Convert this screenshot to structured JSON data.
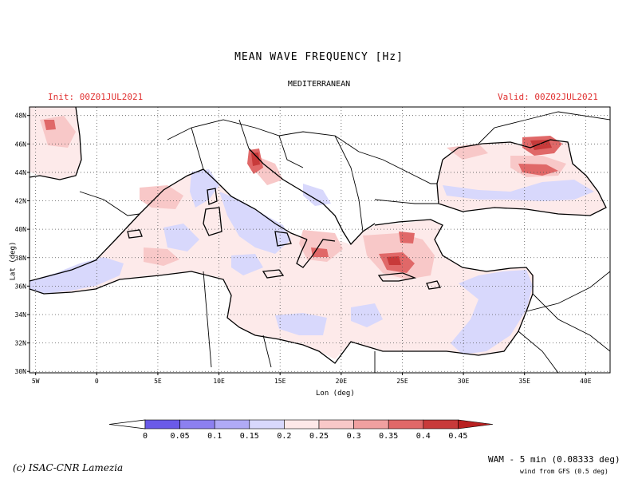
{
  "title": "MEAN WAVE FREQUENCY [Hz]",
  "region": "MEDITERRANEAN",
  "init": "Init: 00Z01JUL2021",
  "valid": "Valid: 00Z02JUL2021",
  "axes": {
    "xlabel": "Lon (deg)",
    "ylabel": "Lat (deg)",
    "lon_ticks": [
      {
        "lon": -5,
        "label": "5W"
      },
      {
        "lon": 0,
        "label": "0"
      },
      {
        "lon": 5,
        "label": "5E"
      },
      {
        "lon": 10,
        "label": "10E"
      },
      {
        "lon": 15,
        "label": "15E"
      },
      {
        "lon": 20,
        "label": "20E"
      },
      {
        "lon": 25,
        "label": "25E"
      },
      {
        "lon": 30,
        "label": "30E"
      },
      {
        "lon": 35,
        "label": "35E"
      },
      {
        "lon": 40,
        "label": "40E"
      }
    ],
    "lat_ticks": [
      {
        "lat": 30,
        "label": "30N"
      },
      {
        "lat": 32,
        "label": "32N"
      },
      {
        "lat": 34,
        "label": "34N"
      },
      {
        "lat": 36,
        "label": "36N"
      },
      {
        "lat": 38,
        "label": "38N"
      },
      {
        "lat": 40,
        "label": "40N"
      },
      {
        "lat": 42,
        "label": "42N"
      },
      {
        "lat": 44,
        "label": "44N"
      },
      {
        "lat": 46,
        "label": "46N"
      },
      {
        "lat": 48,
        "label": "48N"
      }
    ],
    "lon_range": [
      -5.5,
      42
    ],
    "lat_range": [
      29.9,
      48.6
    ],
    "grid": true
  },
  "colorbar": {
    "ticks": [
      "0",
      "0.05",
      "0.1",
      "0.15",
      "0.2",
      "0.25",
      "0.3",
      "0.35",
      "0.4",
      "0.45"
    ],
    "colors": [
      "#6a5ae8",
      "#8c80f0",
      "#b0aaf6",
      "#d8d8fc",
      "#fde8e8",
      "#f8c8c8",
      "#f0a0a0",
      "#e06868",
      "#c83a3a",
      "#b82020"
    ]
  },
  "credit": "(c) ISAC-CNR Lamezia",
  "model": "WAM - 5 min (0.08333 deg)",
  "wind_source": "wind from GFS (0.5 deg)",
  "colors": {
    "annotation": "#e03030",
    "sea_base": "#fdeaea",
    "low_band": "#d8d8fc",
    "high_band": "#e06868"
  }
}
